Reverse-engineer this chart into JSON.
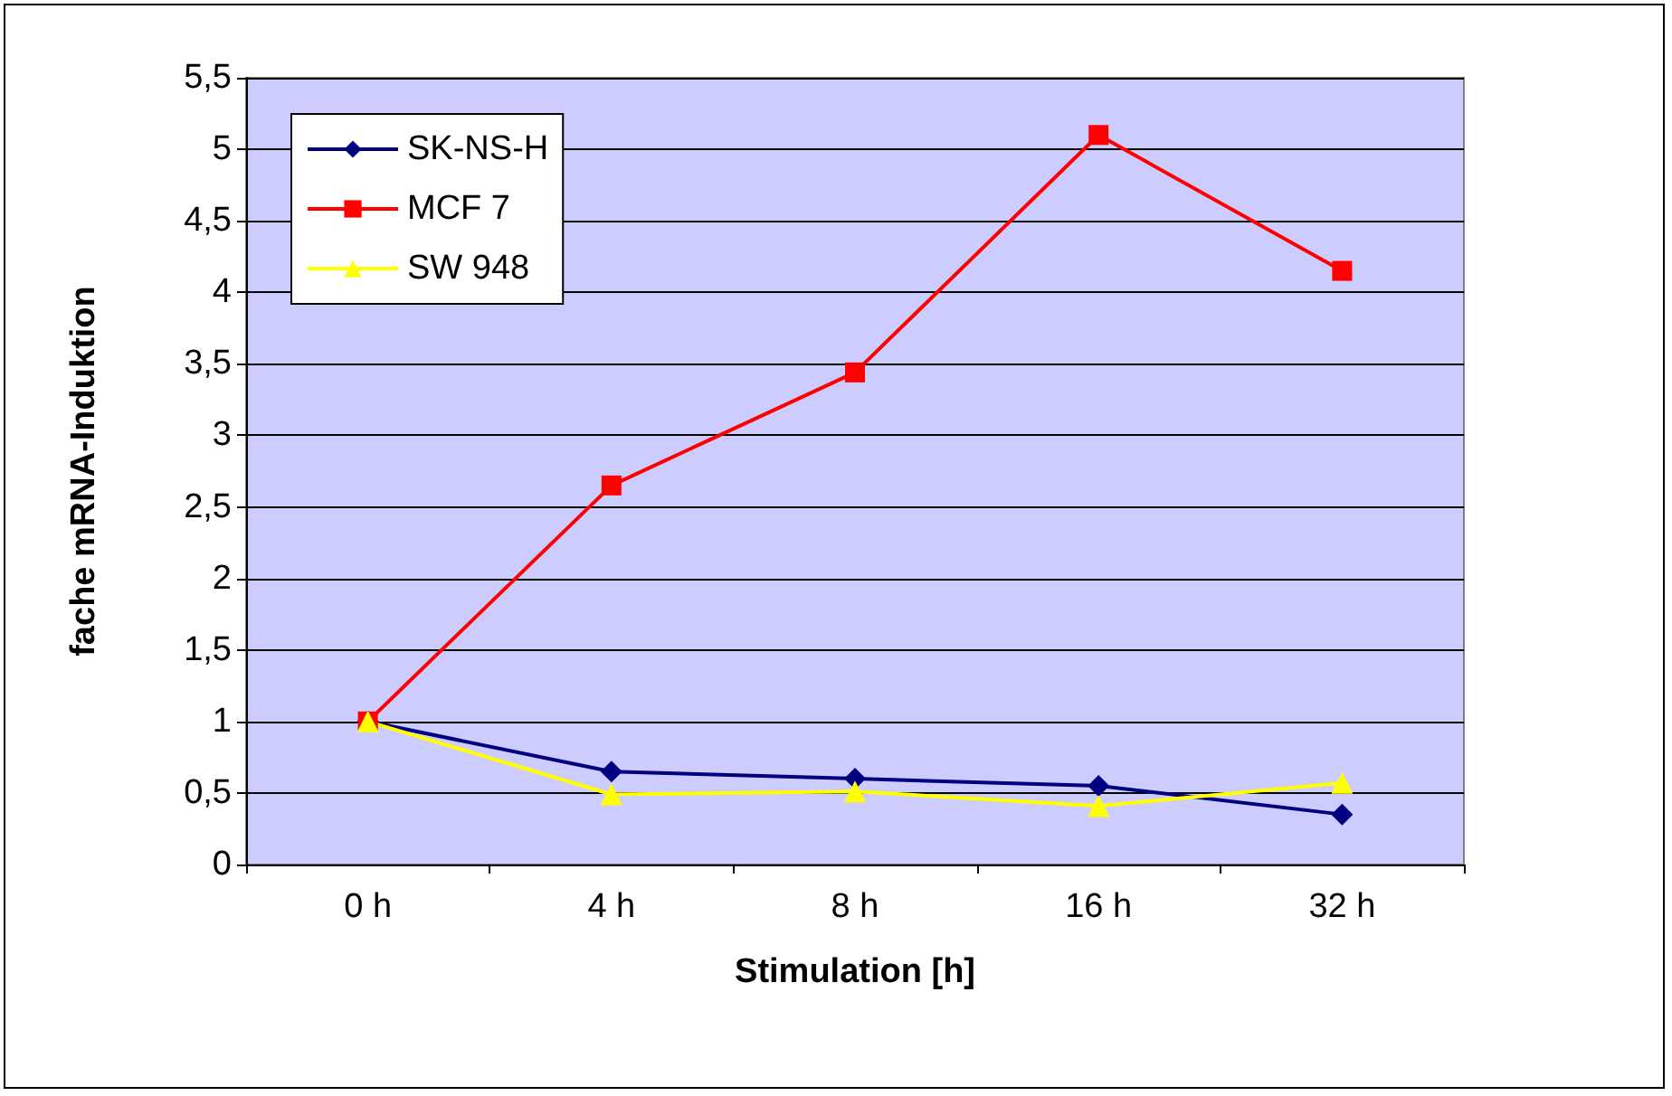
{
  "chart_data": {
    "type": "line",
    "xlabel": "Stimulation [h]",
    "ylabel": "fache mRNA-Induktion",
    "categories": [
      "0 h",
      "4 h",
      "8 h",
      "16 h",
      "32 h"
    ],
    "series": [
      {
        "name": "SK-NS-H",
        "color": "#000080",
        "marker": "diamond",
        "values": [
          1,
          0.65,
          0.6,
          0.55,
          0.35
        ]
      },
      {
        "name": "MCF 7",
        "color": "#ff0000",
        "marker": "square",
        "values": [
          1,
          2.65,
          3.44,
          5.1,
          4.15
        ]
      },
      {
        "name": "SW 948",
        "color": "#ffff00",
        "marker": "triangle",
        "values": [
          1,
          0.49,
          0.51,
          0.41,
          0.57
        ]
      }
    ],
    "ylim": [
      0,
      5.5
    ],
    "yticks": [
      0,
      {
        "value": 0.5,
        "label": "0,5"
      },
      1,
      {
        "value": 1.5,
        "label": "1,5"
      },
      2,
      {
        "value": 2.5,
        "label": "2,5"
      },
      3,
      {
        "value": 3.5,
        "label": "3,5"
      },
      4,
      {
        "value": 4.5,
        "label": "4,5"
      },
      5,
      {
        "value": 5.5,
        "label": "5,5"
      }
    ],
    "grid": "y",
    "legend": "top left",
    "line_style": "solid"
  }
}
